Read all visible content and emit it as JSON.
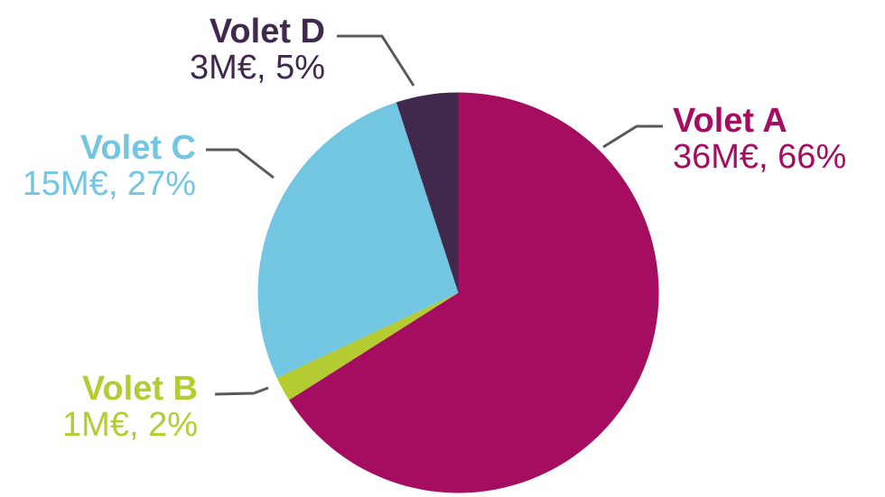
{
  "chart_data": {
    "type": "pie",
    "unit": "M€",
    "start_angle_deg": 0,
    "direction": "clockwise",
    "legend_position": "outside-callout-labels",
    "background_color": "#ffffff",
    "callout_line_color": "#58595b",
    "slices": [
      {
        "name": "Volet A",
        "amount_meur": 36,
        "percent": 66,
        "value_label": "36M€, 66%",
        "color": "#a50d60"
      },
      {
        "name": "Volet B",
        "amount_meur": 1,
        "percent": 2,
        "value_label": "1M€, 2%",
        "color": "#b4cb32"
      },
      {
        "name": "Volet C",
        "amount_meur": 15,
        "percent": 27,
        "value_label": "15M€, 27%",
        "color": "#73c6e2"
      },
      {
        "name": "Volet D",
        "amount_meur": 3,
        "percent": 5,
        "value_label": "3M€, 5%",
        "color": "#40294c"
      }
    ]
  }
}
